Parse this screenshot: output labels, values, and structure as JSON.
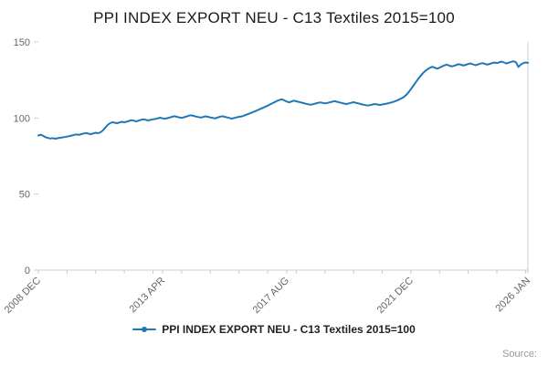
{
  "title": "PPI INDEX EXPORT NEU - C13 Textiles 2015=100",
  "legend": {
    "label": "PPI INDEX EXPORT NEU - C13 Textiles 2015=100"
  },
  "source_label": "Source:",
  "colors": {
    "line": "#1f77b4",
    "axis": "#cccccc",
    "tick_text": "#666666",
    "title_text": "#1a1a1a",
    "source_text": "#999999"
  },
  "chart_data": {
    "type": "line",
    "title": "PPI INDEX EXPORT NEU - C13 Textiles 2015=100",
    "xlabel": "",
    "ylabel": "",
    "x_start": "2008 DEC",
    "x_end": "2026 JAN",
    "frequency": "monthly",
    "ylim": [
      0,
      150
    ],
    "y_ticks": [
      0,
      50,
      100,
      150
    ],
    "x_ticks": [
      {
        "index": 0,
        "label": "2008 DEC"
      },
      {
        "index": 52,
        "label": "2013 APR"
      },
      {
        "index": 104,
        "label": "2017 AUG"
      },
      {
        "index": 156,
        "label": "2021 DEC"
      },
      {
        "index": 205,
        "label": "2026 JAN"
      }
    ],
    "minor_tick_interval_months": 12,
    "legend_position": "bottom",
    "grid": false,
    "series": [
      {
        "name": "PPI INDEX EXPORT NEU - C13 Textiles 2015=100",
        "values": [
          88.5,
          89.0,
          88.3,
          87.4,
          86.9,
          86.5,
          86.8,
          86.4,
          86.7,
          87.0,
          87.2,
          87.5,
          87.8,
          88.1,
          88.5,
          88.9,
          89.2,
          88.9,
          89.4,
          89.8,
          90.1,
          89.7,
          89.4,
          89.9,
          90.3,
          90.0,
          90.6,
          91.8,
          93.6,
          95.4,
          96.6,
          97.2,
          96.9,
          96.6,
          97.1,
          97.5,
          97.2,
          97.6,
          98.1,
          98.6,
          98.2,
          97.8,
          98.3,
          98.8,
          99.2,
          98.8,
          98.4,
          98.8,
          99.1,
          99.4,
          99.8,
          100.2,
          99.8,
          99.5,
          99.9,
          100.3,
          100.8,
          101.2,
          100.8,
          100.4,
          100.1,
          100.5,
          101.0,
          101.5,
          101.8,
          101.4,
          101.0,
          100.6,
          100.3,
          100.7,
          101.1,
          100.8,
          100.4,
          100.1,
          99.7,
          100.3,
          100.8,
          101.2,
          100.8,
          100.4,
          100.0,
          99.6,
          100.0,
          100.4,
          100.8,
          101.0,
          101.5,
          102.1,
          102.7,
          103.3,
          104.0,
          104.6,
          105.3,
          106.0,
          106.7,
          107.4,
          108.1,
          108.9,
          109.7,
          110.5,
          111.3,
          111.9,
          112.3,
          111.6,
          110.9,
          110.3,
          110.9,
          111.4,
          111.0,
          110.6,
          110.2,
          109.8,
          109.4,
          109.0,
          108.7,
          109.1,
          109.5,
          109.9,
          110.3,
          110.0,
          109.6,
          109.9,
          110.3,
          110.7,
          111.1,
          110.7,
          110.3,
          109.9,
          109.5,
          109.2,
          109.6,
          110.0,
          110.4,
          110.0,
          109.6,
          109.2,
          108.8,
          108.5,
          108.2,
          108.5,
          108.9,
          109.2,
          108.9,
          108.6,
          108.9,
          109.2,
          109.5,
          109.9,
          110.3,
          110.8,
          111.4,
          112.1,
          112.9,
          113.8,
          115.1,
          116.9,
          119.0,
          121.2,
          123.4,
          125.6,
          127.6,
          129.4,
          130.9,
          132.1,
          133.1,
          133.7,
          133.1,
          132.5,
          133.1,
          133.9,
          134.6,
          135.1,
          134.5,
          133.9,
          134.3,
          134.9,
          135.4,
          135.0,
          134.5,
          135.0,
          135.5,
          135.9,
          135.3,
          134.7,
          135.2,
          135.7,
          136.1,
          135.6,
          135.1,
          135.6,
          136.1,
          136.5,
          136.1,
          136.6,
          137.1,
          136.5,
          135.9,
          136.4,
          136.9,
          137.3,
          136.7,
          133.6,
          135.1,
          136.1,
          136.5,
          136.3
        ]
      }
    ]
  }
}
